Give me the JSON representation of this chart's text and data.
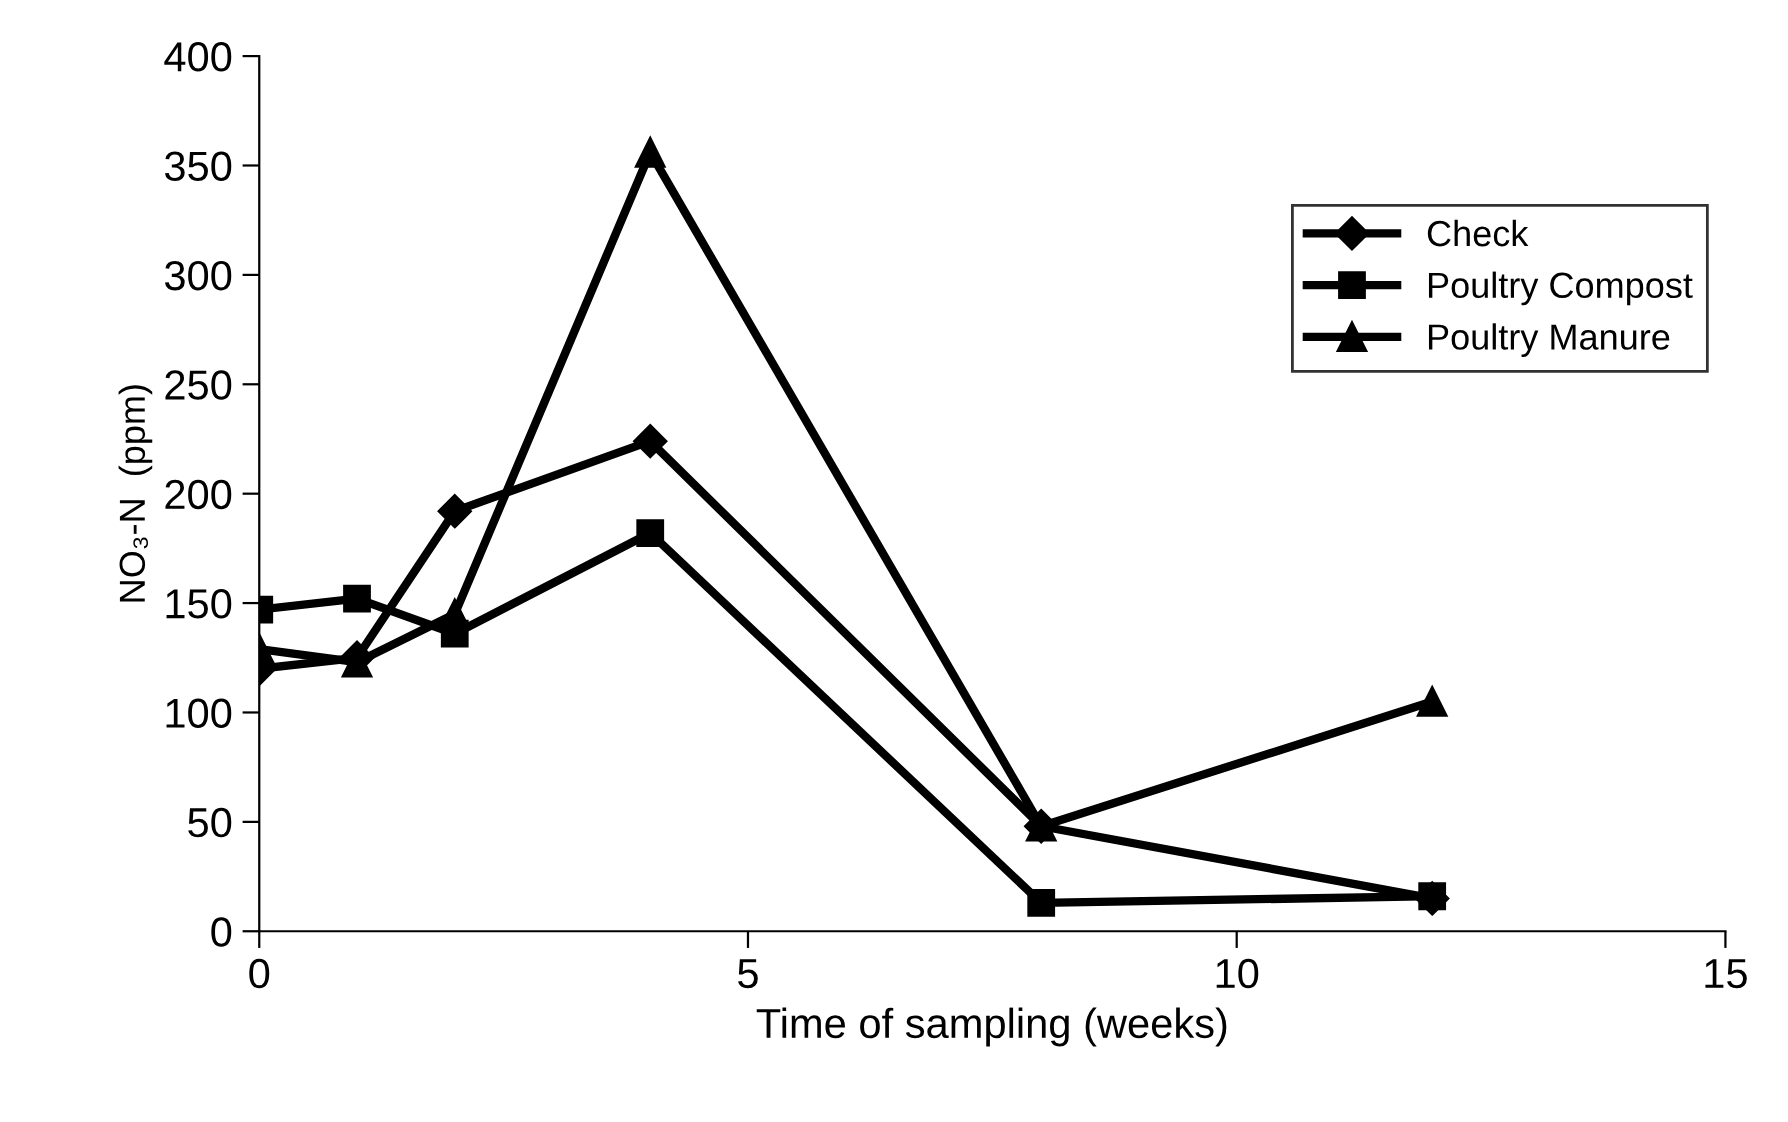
{
  "chart_data": {
    "type": "line",
    "xlabel": "Time of sampling (weeks)",
    "ylabel": "NO₃-N  (ppm)",
    "x": [
      0,
      1,
      2,
      4,
      8,
      12
    ],
    "series": [
      {
        "name": "Check",
        "color": "#000000",
        "marker": "diamond",
        "values": [
          120,
          125,
          192,
          224,
          48,
          15
        ]
      },
      {
        "name": "Poultry Compost",
        "color": "#000000",
        "marker": "square",
        "values": [
          147,
          152,
          136,
          182,
          13,
          16
        ]
      },
      {
        "name": "Poultry Manure",
        "color": "#000000",
        "marker": "triangle",
        "values": [
          129,
          123,
          145,
          356,
          48,
          105
        ]
      }
    ],
    "xlim": [
      0,
      15
    ],
    "xticks": [
      0,
      5,
      10,
      15
    ],
    "ylim": [
      0,
      400
    ],
    "yticks": [
      0,
      50,
      100,
      150,
      200,
      250,
      300,
      350,
      400
    ],
    "grid": false,
    "legend": "top right",
    "line_style": "solid"
  }
}
